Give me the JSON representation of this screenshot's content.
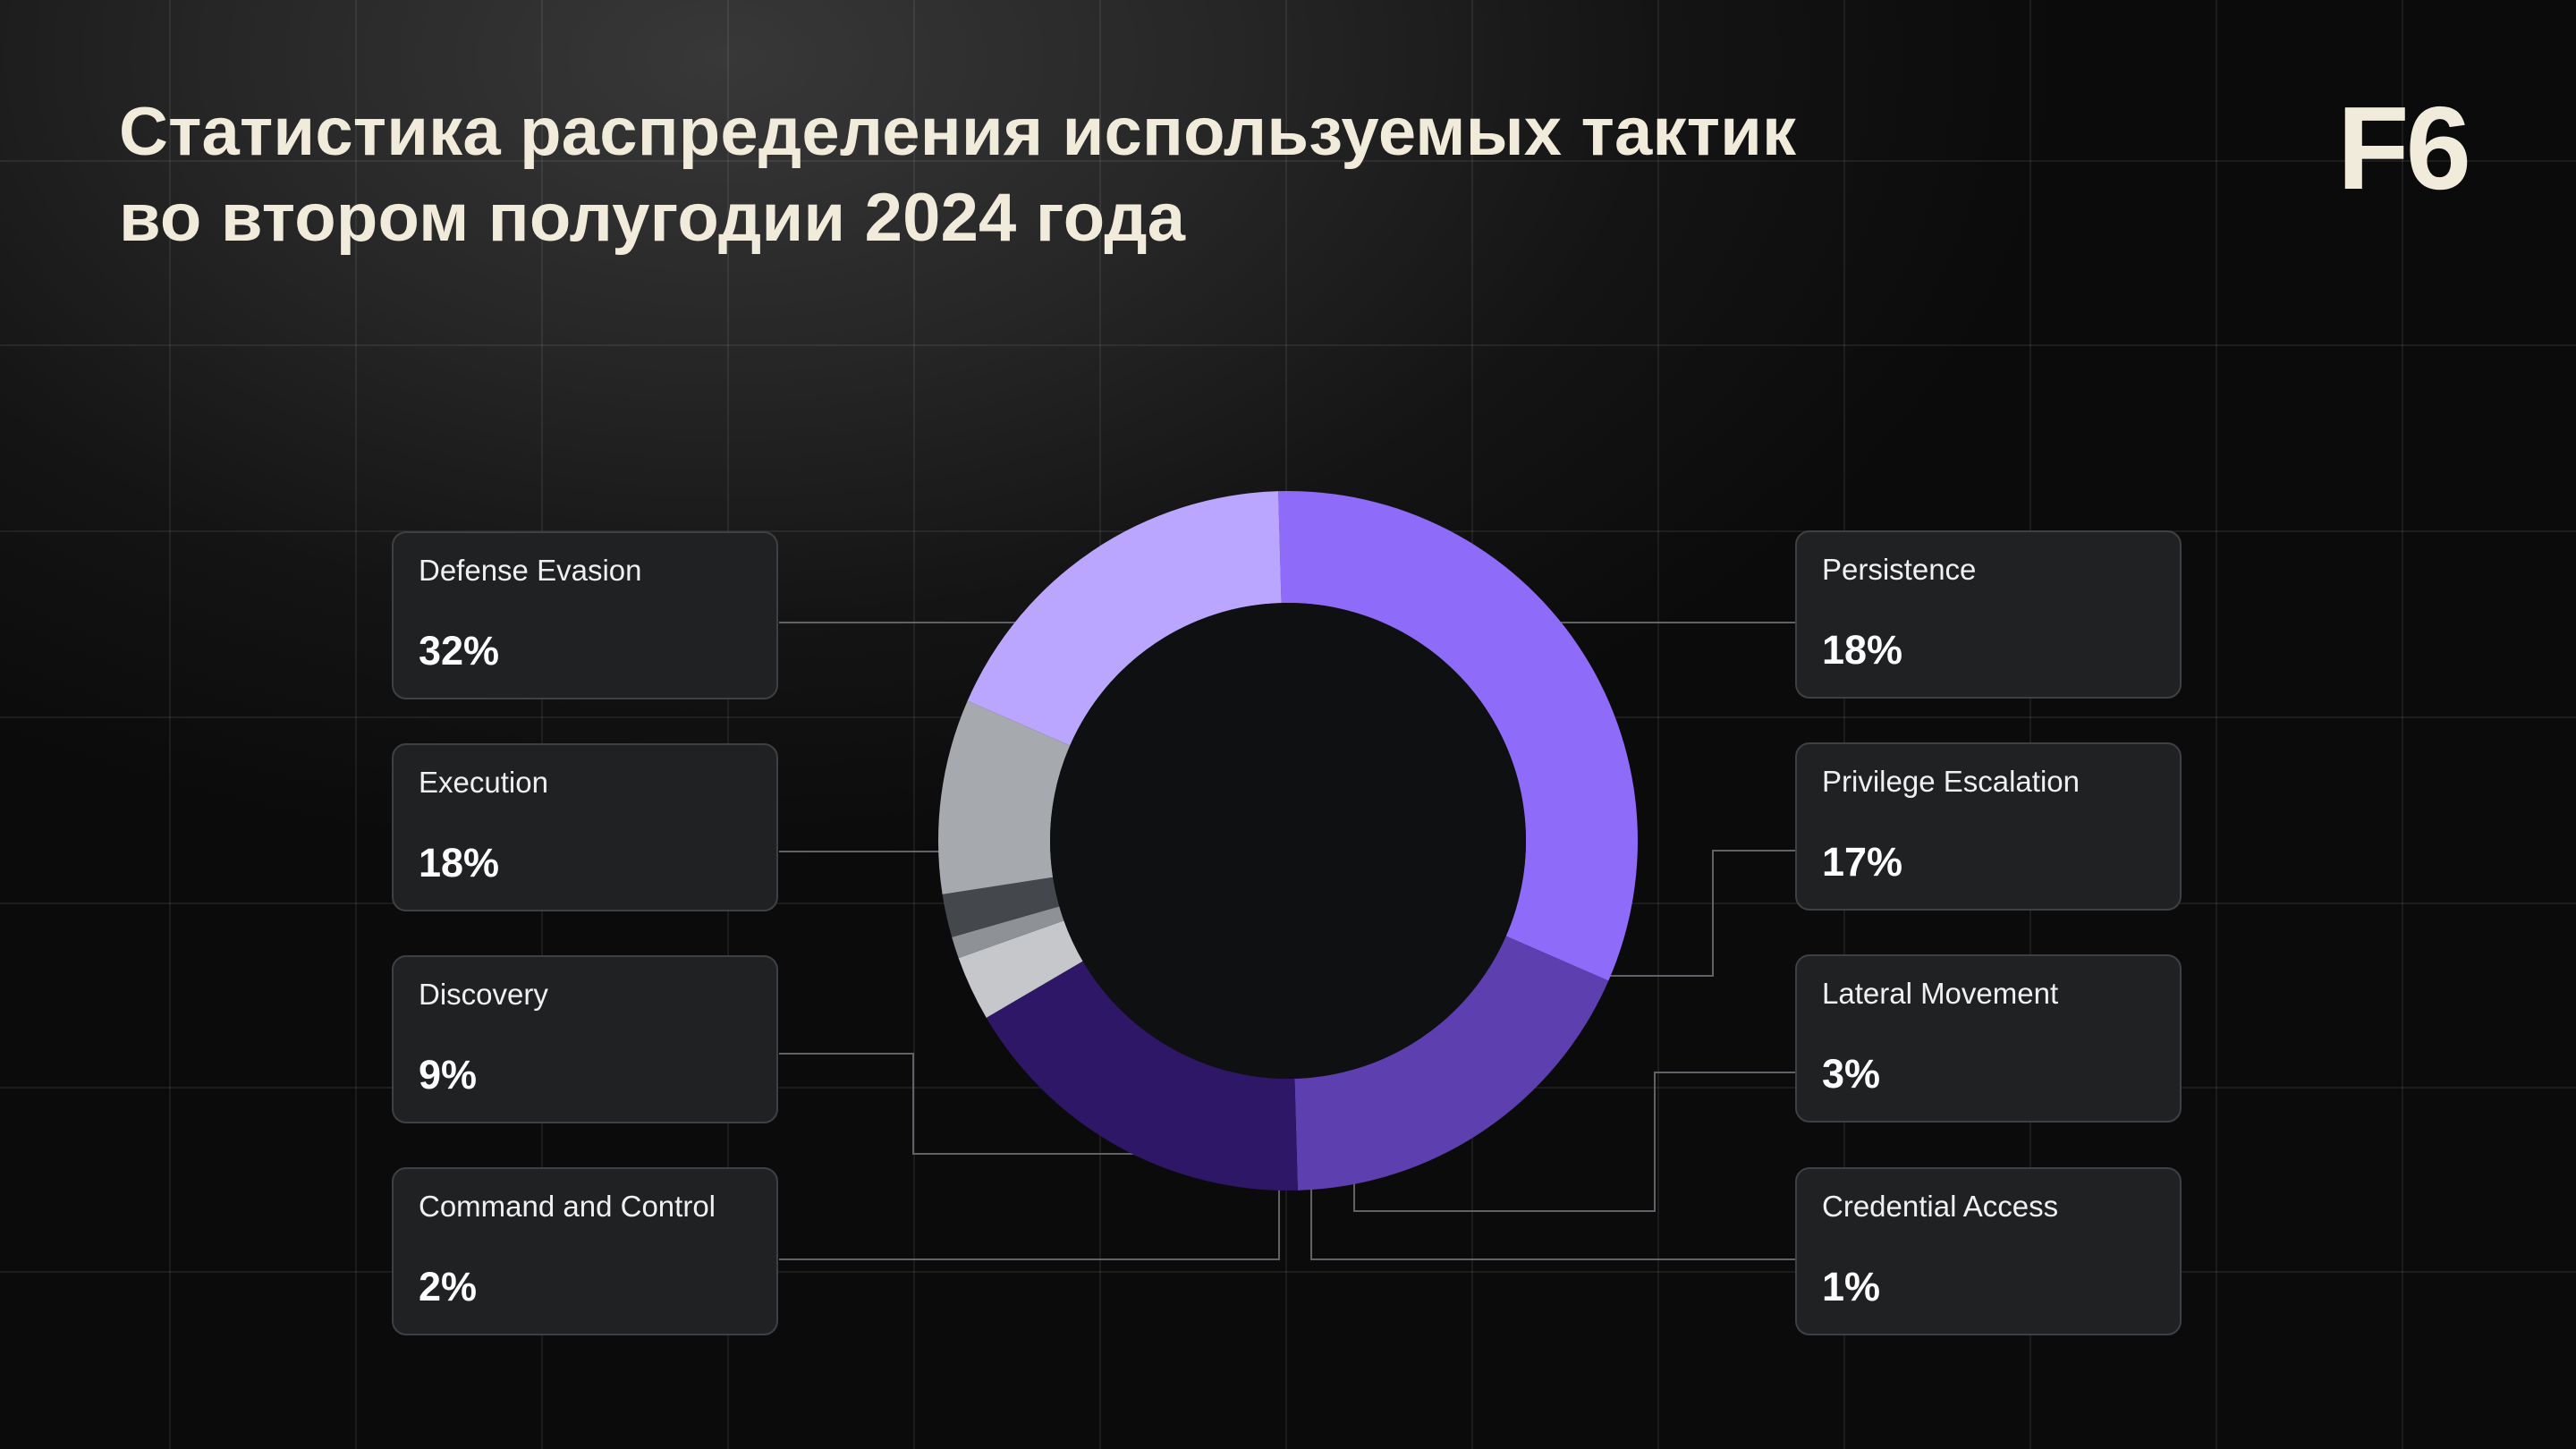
{
  "header": {
    "title_line1": "Статистика распределения используемых тактик",
    "title_line2": "во втором полугодии 2024 года",
    "logo_text": "F6"
  },
  "chart_data": {
    "type": "donut",
    "title": "Статистика распределения используемых тактик во втором полугодии 2024 года",
    "unit": "%",
    "slices": [
      {
        "label": "Defense Evasion",
        "value": 32,
        "value_text": "32%",
        "color": "#8f6bfa"
      },
      {
        "label": "Persistence",
        "value": 18,
        "value_text": "18%",
        "color": "#5e3fb0"
      },
      {
        "label": "Privilege Escalation",
        "value": 17,
        "value_text": "17%",
        "color": "#2d1766"
      },
      {
        "label": "Lateral Movement",
        "value": 3,
        "value_text": "3%",
        "color": "#c5c7ca"
      },
      {
        "label": "Credential Access",
        "value": 1,
        "value_text": "1%",
        "color": "#8e9195"
      },
      {
        "label": "Command and Control",
        "value": 2,
        "value_text": "2%",
        "color": "#44474b"
      },
      {
        "label": "Discovery",
        "value": 9,
        "value_text": "9%",
        "color": "#a6a9ad"
      },
      {
        "label": "Execution",
        "value": 18,
        "value_text": "18%",
        "color": "#bba6ff"
      }
    ]
  },
  "colors": {
    "title": "#f1ebdc",
    "card_background": "#1f2123",
    "card_border": "#3e4144",
    "connector": "#5f6266",
    "donut_hole": "#0f1011"
  }
}
